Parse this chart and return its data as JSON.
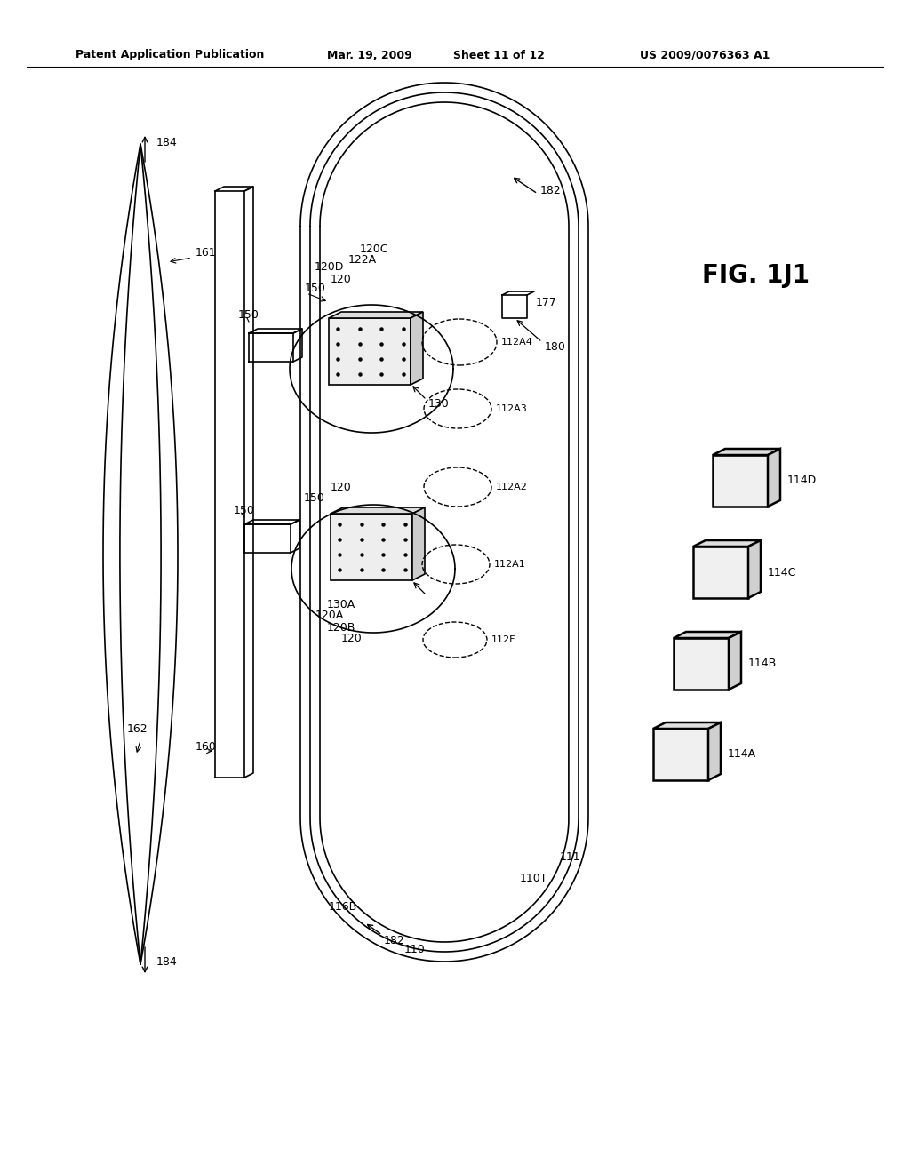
{
  "bg_color": "#ffffff",
  "title_header": "Patent Application Publication",
  "title_date": "Mar. 19, 2009",
  "title_sheet": "Sheet 11 of 12",
  "title_patent": "US 2009/0076363 A1",
  "fig_label": "FIG. 1J1"
}
